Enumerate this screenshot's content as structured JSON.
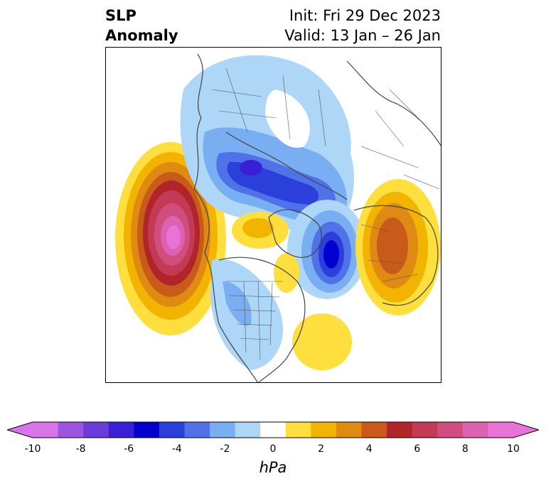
{
  "title": {
    "variable_line1": "SLP",
    "variable_line2": "Anomaly",
    "init": "Init: Fri 29 Dec 2023",
    "valid": "Valid: 13 Jan – 26 Jan"
  },
  "colorbar": {
    "units": "hPa",
    "ticks": [
      "-10",
      "-8",
      "-6",
      "-4",
      "-2",
      "0",
      "2",
      "4",
      "6",
      "8",
      "10"
    ],
    "tick_values": [
      -10,
      -8,
      -6,
      -4,
      -2,
      0,
      2,
      4,
      6,
      8,
      10
    ],
    "levels": [
      -10,
      -9,
      -8,
      -7,
      -6,
      -5,
      -4,
      -3,
      -2,
      -1,
      1,
      2,
      3,
      4,
      5,
      6,
      7,
      8,
      9,
      10
    ],
    "colors": [
      "#d875e8",
      "#9b55e0",
      "#6a3cdc",
      "#3a20d4",
      "#0000cc",
      "#2b3fdb",
      "#4f72e8",
      "#7aaef3",
      "#aed6f7",
      "#ffffff",
      "#ffdf3e",
      "#f2b400",
      "#df8a12",
      "#c85a1a",
      "#b0242a",
      "#c43a55",
      "#cf4e7e",
      "#dc62b0",
      "#e873d8"
    ],
    "extend_low_color": "#d875e8",
    "extend_high_color": "#e873d8"
  },
  "map": {
    "projection": "north-polar-stereographic",
    "region": "Northern Hemisphere"
  }
}
